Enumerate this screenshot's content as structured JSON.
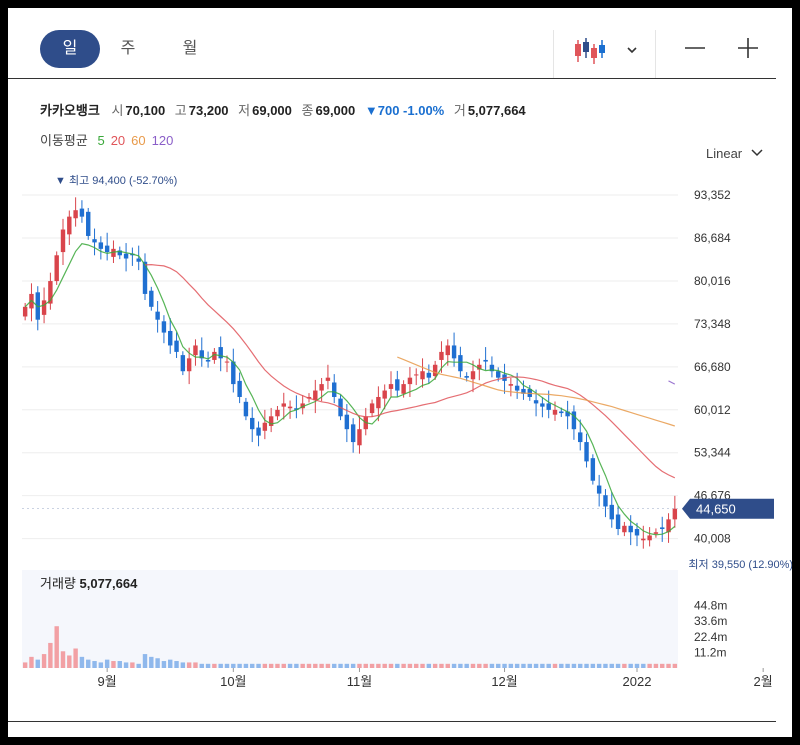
{
  "tabs": [
    "일",
    "주",
    "월"
  ],
  "active_tab": 0,
  "controls": {
    "chart_type_icon": "candlestick-icon",
    "dropdown_icon": "chevron-down-icon",
    "zoom_out_icon": "minus-icon",
    "zoom_in_icon": "plus-icon",
    "scale_label": "Linear"
  },
  "stock": {
    "name": "카카오뱅크",
    "open_label": "시",
    "open": "70,100",
    "high_label": "고",
    "high": "73,200",
    "low_label": "저",
    "low": "69,000",
    "close_label": "종",
    "close": "69,000",
    "change": "▼700 -1.00%",
    "volume_label": "거",
    "volume": "5,077,664"
  },
  "ma": {
    "label": "이동평균",
    "periods": [
      "5",
      "20",
      "60",
      "120"
    ],
    "colors": [
      "#3aa83a",
      "#e0555a",
      "#e89a4a",
      "#8a5ec8"
    ]
  },
  "chart_data": {
    "type": "candlestick",
    "y_ticks": [
      "93,352",
      "86,684",
      "80,016",
      "73,348",
      "66,680",
      "60,012",
      "53,344",
      "46,676",
      "40,008"
    ],
    "y_tick_values": [
      93352,
      86684,
      80016,
      73348,
      66680,
      60012,
      53344,
      46676,
      40008
    ],
    "x_ticks": [
      "9월",
      "10월",
      "11월",
      "12월",
      "2022",
      "2월"
    ],
    "x_tick_index": [
      13,
      33,
      53,
      76,
      97,
      117
    ],
    "ylim": [
      37000,
      96000
    ],
    "current_price": "44,650",
    "current_value": 44650,
    "max_annotation": "▼ 최고 94,400 (-52.70%)",
    "max_index": 6,
    "max_value": 94400,
    "min_annotation": "최저 39,550 (12.90%) ▲",
    "min_index": 123,
    "min_value": 39550,
    "closes": [
      76000,
      78000,
      74000,
      77000,
      80000,
      84000,
      88000,
      90000,
      91000,
      90000,
      87000,
      86000,
      85000,
      84500,
      85000,
      84000,
      83500,
      84000,
      83000,
      78000,
      76000,
      74000,
      72000,
      70000,
      69000,
      66000,
      68000,
      70000,
      68000,
      67500,
      69000,
      68000,
      67500,
      64000,
      62000,
      59000,
      57000,
      56000,
      58000,
      59000,
      60000,
      61000,
      60500,
      60000,
      61000,
      62000,
      63000,
      64000,
      65000,
      62000,
      59000,
      57000,
      55000,
      57000,
      59000,
      61000,
      62000,
      63000,
      64000,
      63000,
      64000,
      65000,
      65500,
      66000,
      65000,
      67000,
      69000,
      70000,
      68000,
      66000,
      65000,
      66000,
      67000,
      67500,
      66000,
      65000,
      64500,
      64000,
      63000,
      62500,
      62000,
      61000,
      60500,
      60000,
      60000,
      59500,
      59000,
      57000,
      55000,
      52000,
      49000,
      47000,
      45000,
      43000,
      41500,
      42000,
      41000,
      40500,
      40000,
      40500,
      41000,
      41500,
      43000,
      44650
    ],
    "ma_series": [
      {
        "period": "5",
        "values": [
          76000,
          77000,
          76000,
          76250,
          77000,
          78600,
          80600,
          82600,
          84600,
          85800,
          85600,
          85200,
          84600,
          84300,
          84500,
          84600,
          84400,
          84200,
          83900,
          82500,
          80900,
          78900,
          76600,
          74000,
          72200,
          69800,
          68800,
          68200,
          68200,
          67900,
          68600,
          68400,
          68200,
          67400,
          66200,
          63900,
          62100,
          60000,
          58400,
          57800,
          58000,
          58800,
          59700,
          60000,
          60500,
          60900,
          61300,
          62000,
          62800,
          62800,
          62400,
          61400,
          60200,
          58800,
          58000,
          57800,
          58800,
          60400,
          62000,
          62000,
          62400,
          62800,
          63200,
          63800,
          64100,
          64900,
          66500,
          67500,
          67400,
          67400,
          67400,
          67000,
          66400,
          66100,
          66200,
          66100,
          65700,
          65400,
          64900,
          63800,
          63300,
          62600,
          61900,
          61200,
          60700,
          60200,
          59700,
          59100,
          58100,
          56700,
          54600,
          52000,
          49800,
          47200,
          45100,
          43800,
          42700,
          42000,
          41200,
          40800,
          40600,
          40700,
          41100,
          41900
        ]
      },
      {
        "period": "20",
        "values": [
          null,
          null,
          null,
          null,
          null,
          null,
          null,
          null,
          null,
          null,
          null,
          null,
          null,
          null,
          null,
          null,
          null,
          null,
          null,
          82500,
          82550,
          82450,
          82350,
          82000,
          81450,
          80550,
          79500,
          78500,
          77350,
          76300,
          75400,
          74500,
          73600,
          72600,
          71450,
          70200,
          68850,
          67450,
          66200,
          65250,
          64450,
          63700,
          63100,
          62600,
          62200,
          61800,
          61550,
          61250,
          61100,
          60800,
          60350,
          59900,
          59450,
          59100,
          58900,
          58950,
          59150,
          59500,
          59750,
          59900,
          60100,
          60300,
          60500,
          60750,
          60950,
          61150,
          61500,
          61850,
          62100,
          62350,
          62650,
          63100,
          63650,
          64150,
          64500,
          64750,
          64950,
          65100,
          65100,
          65050,
          64900,
          64700,
          64450,
          64100,
          63800,
          63550,
          63300,
          62850,
          62300,
          61600,
          60800,
          59950,
          59100,
          58150,
          57150,
          56150,
          55150,
          54150,
          53150,
          52150,
          51200,
          50450,
          49900,
          49450
        ]
      },
      {
        "period": "60",
        "values": [
          null,
          null,
          null,
          null,
          null,
          null,
          null,
          null,
          null,
          null,
          null,
          null,
          null,
          null,
          null,
          null,
          null,
          null,
          null,
          null,
          null,
          null,
          null,
          null,
          null,
          null,
          null,
          null,
          null,
          null,
          null,
          null,
          null,
          null,
          null,
          null,
          null,
          null,
          null,
          null,
          null,
          null,
          null,
          null,
          null,
          null,
          null,
          null,
          null,
          null,
          null,
          null,
          null,
          null,
          null,
          null,
          null,
          null,
          null,
          68200,
          67800,
          67400,
          67000,
          66600,
          66200,
          65800,
          65500,
          65300,
          65100,
          64900,
          64600,
          64300,
          64000,
          63700,
          63400,
          63100,
          62900,
          62800,
          62700,
          62600,
          62550,
          62500,
          62450,
          62400,
          62300,
          62200,
          62050,
          61900,
          61700,
          61500,
          61250,
          61000,
          60750,
          60500,
          60200,
          59900,
          59600,
          59300,
          59000,
          58700,
          58400,
          58100,
          57800,
          57500
        ]
      },
      {
        "period": "120",
        "values": [
          null,
          null,
          null,
          null,
          null,
          null,
          null,
          null,
          null,
          null,
          null,
          null,
          null,
          null,
          null,
          null,
          null,
          null,
          null,
          null,
          null,
          null,
          null,
          null,
          null,
          null,
          null,
          null,
          null,
          null,
          null,
          null,
          null,
          null,
          null,
          null,
          null,
          null,
          null,
          null,
          null,
          null,
          null,
          null,
          null,
          null,
          null,
          null,
          null,
          null,
          null,
          null,
          null,
          null,
          null,
          null,
          null,
          null,
          null,
          null,
          null,
          null,
          null,
          null,
          null,
          null,
          null,
          null,
          null,
          null,
          null,
          null,
          null,
          null,
          null,
          null,
          null,
          null,
          null,
          null,
          null,
          null,
          null,
          null,
          null,
          null,
          null,
          null,
          null,
          null,
          null,
          null,
          null,
          null,
          null,
          null,
          null,
          null,
          null,
          null,
          null,
          null,
          64500,
          64000
        ]
      }
    ],
    "volume": {
      "label": "거래량",
      "value": "5,077,664",
      "ticks": [
        "44.8m",
        "33.6m",
        "22.4m",
        "11.2m"
      ],
      "tick_values": [
        44.8,
        33.6,
        22.4,
        11.2
      ],
      "ylim": [
        0,
        56
      ],
      "values": [
        4,
        8,
        6,
        10,
        18,
        30,
        12,
        9,
        14,
        8,
        6,
        5,
        4,
        6,
        5,
        5,
        4,
        4,
        3,
        10,
        8,
        7,
        5,
        6,
        5,
        4,
        4,
        4,
        3,
        3,
        3,
        3,
        3,
        3,
        3,
        3,
        3,
        3,
        3,
        3,
        3,
        3,
        3,
        3,
        3,
        3,
        3,
        3,
        3,
        3,
        3,
        3,
        3,
        3,
        3,
        3,
        3,
        3,
        3,
        3,
        3,
        3,
        3,
        3,
        3,
        3,
        3,
        3,
        3,
        3,
        3,
        3,
        3,
        3,
        3,
        3,
        3,
        3,
        3,
        3,
        3,
        3,
        3,
        3,
        3,
        3,
        3,
        3,
        3,
        3,
        3,
        3,
        3,
        3,
        3,
        3,
        3,
        3,
        3,
        3,
        3,
        3,
        3,
        3
      ]
    }
  }
}
